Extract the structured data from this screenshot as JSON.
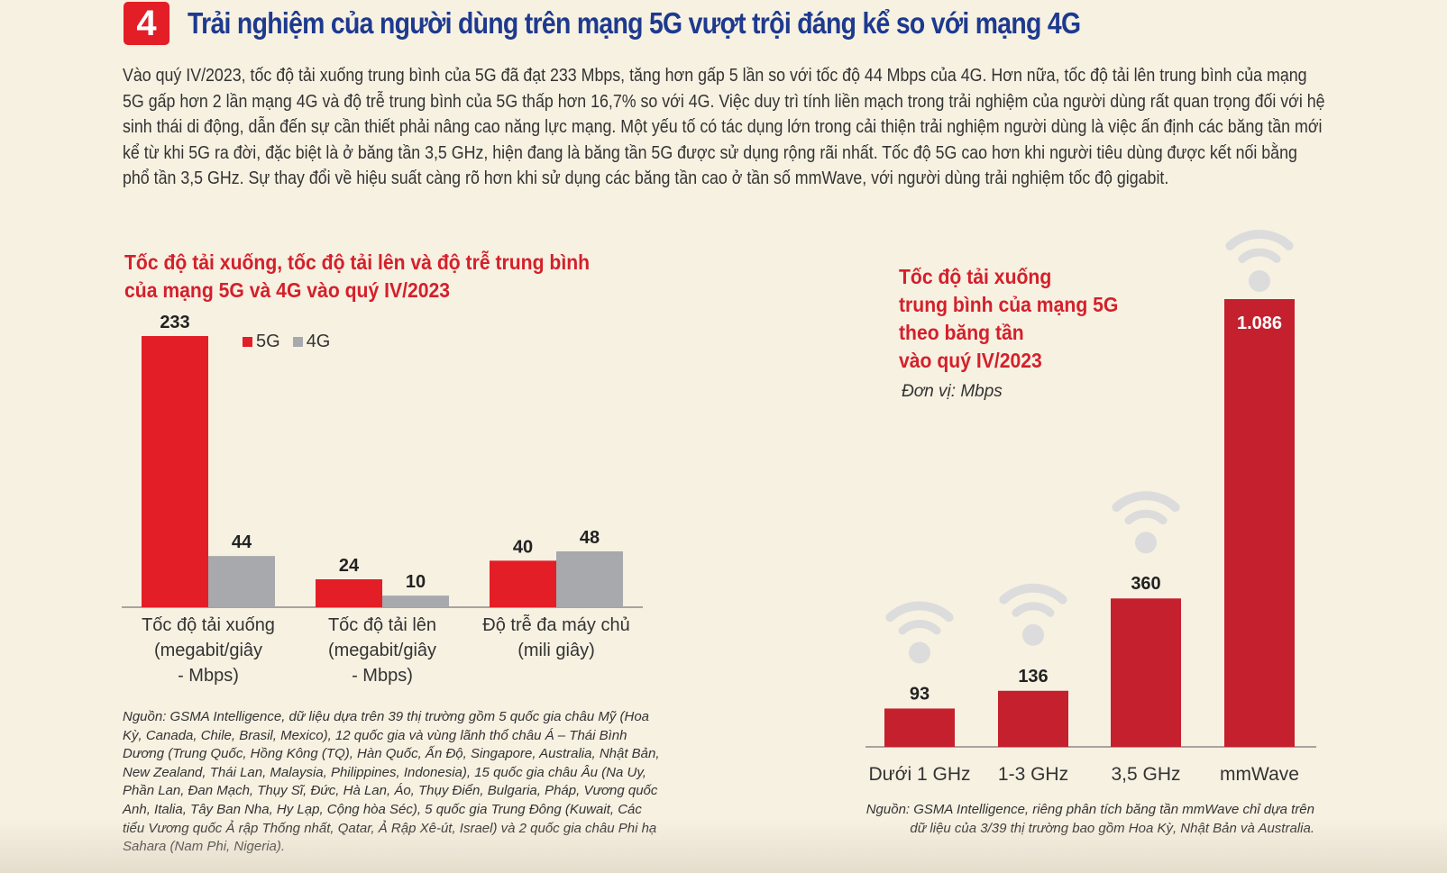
{
  "section": {
    "number": "4",
    "heading": "Trải nghiệm của người dùng trên mạng 5G vượt trội đáng kể so với mạng 4G",
    "intro": "Vào quý IV/2023, tốc độ tải xuống trung bình của 5G đã đạt 233 Mbps, tăng hơn gấp 5 lần so với tốc độ 44 Mbps của 4G. Hơn nữa, tốc độ tải lên trung bình của mạng 5G gấp hơn 2 lần mạng 4G và độ trễ trung bình của 5G thấp hơn 16,7% so với 4G. Việc duy trì tính liền mạch trong trải nghiệm của người dùng rất quan trọng đối với hệ sinh thái di động, dẫn đến sự cần thiết phải nâng cao năng lực mạng. Một yếu tố có tác dụng lớn trong cải thiện trải nghiệm người dùng là việc ấn định các băng tần mới kể từ khi 5G ra đời, đặc biệt là ở băng tần 3,5 GHz, hiện đang là băng tần 5G được sử dụng rộng rãi nhất. Tốc độ 5G cao hơn khi người tiêu dùng được kết nối bằng phổ tần 3,5 GHz. Sự thay đổi về hiệu suất càng rõ hơn khi sử dụng các băng tần cao ở tần số mmWave, với người dùng trải nghiệm tốc độ gigabit."
  },
  "colors": {
    "accent": "#e31e26",
    "series_5g": "#e31e26",
    "series_4g": "#a7a9ac",
    "band_bar": "#c4202e",
    "wifi": "#dcdcdc",
    "heading": "#1d3a8f"
  },
  "chart_data": [
    {
      "type": "bar",
      "title_lines": [
        "Tốc độ tải xuống, tốc độ tải lên và độ trễ trung bình",
        "của mạng 5G và 4G vào quý IV/2023"
      ],
      "categories": [
        [
          "Tốc độ tải xuống",
          "(megabit/giây",
          "- Mbps)"
        ],
        [
          "Tốc độ tải lên",
          "(megabit/giây",
          "- Mbps)"
        ],
        [
          "Độ trễ đa máy chủ",
          "(mili giây)"
        ]
      ],
      "series": [
        {
          "name": "5G",
          "values": [
            233,
            24,
            40
          ]
        },
        {
          "name": "4G",
          "values": [
            44,
            10,
            48
          ]
        }
      ],
      "value_labels": [
        [
          "233",
          "24",
          "40"
        ],
        [
          "44",
          "10",
          "48"
        ]
      ],
      "ylim": [
        0,
        233
      ],
      "legend": "top",
      "grid": false,
      "source": "Nguồn: GSMA Intelligence, dữ liệu dựa trên 39 thị trường gồm 5 quốc gia châu Mỹ (Hoa Kỳ, Canada, Chile, Brasil, Mexico), 12 quốc gia và vùng lãnh thổ châu Á – Thái Bình Dương (Trung Quốc, Hồng Kông (TQ), Hàn Quốc, Ấn Độ, Singapore, Australia, Nhật Bản, New Zealand, Thái Lan, Malaysia, Philippines, Indonesia), 15 quốc gia châu Âu (Na Uy, Phần Lan, Đan Mạch, Thụy Sĩ, Đức, Hà Lan, Áo, Thụy Điển, Bulgaria, Pháp, Vương quốc Anh, Italia, Tây Ban Nha, Hy Lạp, Cộng hòa Séc), 5 quốc gia Trung Đông (Kuwait, Các tiểu Vương quốc Ả rập Thống nhất, Qatar, Ả Rập Xê-út, Israel) và 2 quốc gia châu Phi hạ Sahara (Nam Phi, Nigeria)."
    },
    {
      "type": "bar",
      "title_lines": [
        "Tốc độ tải xuống",
        "trung bình của mạng 5G",
        "theo băng tần",
        "vào quý IV/2023"
      ],
      "unit": "Đơn vị: Mbps",
      "categories": [
        "Dưới 1 GHz",
        "1-3 GHz",
        "3,5 GHz",
        "mmWave"
      ],
      "values": [
        93,
        136,
        360,
        1086
      ],
      "value_labels": [
        "93",
        "136",
        "360",
        "1.086"
      ],
      "ylim": [
        0,
        1086
      ],
      "icon": "wifi-icon",
      "grid": false,
      "source": "Nguồn: GSMA Intelligence, riêng phân tích băng tần mmWave chỉ dựa trên dữ liệu của 3/39 thị trường bao gồm Hoa Kỳ, Nhật Bản và Australia."
    }
  ]
}
